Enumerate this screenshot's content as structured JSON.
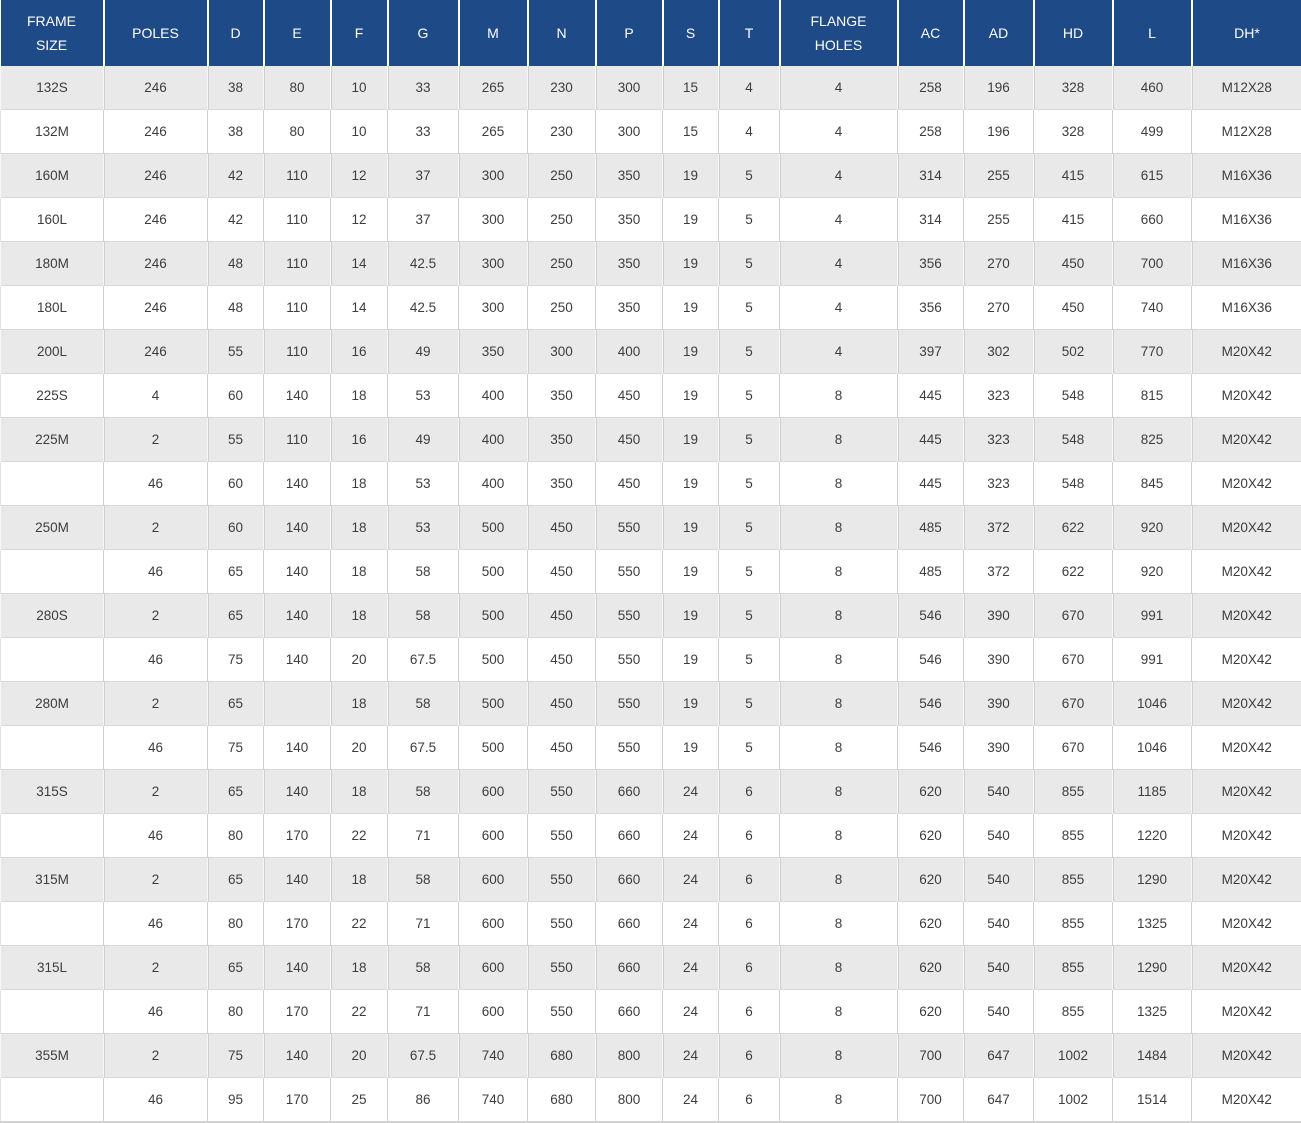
{
  "colors": {
    "header_bg": "#1e4a87",
    "header_text": "#ffffff",
    "row_stripe": "#e9e9e9",
    "row_plain": "#ffffff",
    "body_text": "#3d3d3d"
  },
  "table": {
    "columns": [
      "FRAME\nSIZE",
      "POLES",
      "D",
      "E",
      "F",
      "G",
      "M",
      "N",
      "P",
      "S",
      "T",
      "FLANGE\nHOLES",
      "AC",
      "AD",
      "HD",
      "L",
      "DH*"
    ],
    "rows": [
      [
        "132S",
        "246",
        "38",
        "80",
        "10",
        "33",
        "265",
        "230",
        "300",
        "15",
        "4",
        "4",
        "258",
        "196",
        "328",
        "460",
        "M12X28"
      ],
      [
        "132M",
        "246",
        "38",
        "80",
        "10",
        "33",
        "265",
        "230",
        "300",
        "15",
        "4",
        "4",
        "258",
        "196",
        "328",
        "499",
        "M12X28"
      ],
      [
        "160M",
        "246",
        "42",
        "110",
        "12",
        "37",
        "300",
        "250",
        "350",
        "19",
        "5",
        "4",
        "314",
        "255",
        "415",
        "615",
        "M16X36"
      ],
      [
        "160L",
        "246",
        "42",
        "110",
        "12",
        "37",
        "300",
        "250",
        "350",
        "19",
        "5",
        "4",
        "314",
        "255",
        "415",
        "660",
        "M16X36"
      ],
      [
        "180M",
        "246",
        "48",
        "110",
        "14",
        "42.5",
        "300",
        "250",
        "350",
        "19",
        "5",
        "4",
        "356",
        "270",
        "450",
        "700",
        "M16X36"
      ],
      [
        "180L",
        "246",
        "48",
        "110",
        "14",
        "42.5",
        "300",
        "250",
        "350",
        "19",
        "5",
        "4",
        "356",
        "270",
        "450",
        "740",
        "M16X36"
      ],
      [
        "200L",
        "246",
        "55",
        "110",
        "16",
        "49",
        "350",
        "300",
        "400",
        "19",
        "5",
        "4",
        "397",
        "302",
        "502",
        "770",
        "M20X42"
      ],
      [
        "225S",
        "4",
        "60",
        "140",
        "18",
        "53",
        "400",
        "350",
        "450",
        "19",
        "5",
        "8",
        "445",
        "323",
        "548",
        "815",
        "M20X42"
      ],
      [
        "225M",
        "2",
        "55",
        "110",
        "16",
        "49",
        "400",
        "350",
        "450",
        "19",
        "5",
        "8",
        "445",
        "323",
        "548",
        "825",
        "M20X42"
      ],
      [
        "",
        "46",
        "60",
        "140",
        "18",
        "53",
        "400",
        "350",
        "450",
        "19",
        "5",
        "8",
        "445",
        "323",
        "548",
        "845",
        "M20X42"
      ],
      [
        "250M",
        "2",
        "60",
        "140",
        "18",
        "53",
        "500",
        "450",
        "550",
        "19",
        "5",
        "8",
        "485",
        "372",
        "622",
        "920",
        "M20X42"
      ],
      [
        "",
        "46",
        "65",
        "140",
        "18",
        "58",
        "500",
        "450",
        "550",
        "19",
        "5",
        "8",
        "485",
        "372",
        "622",
        "920",
        "M20X42"
      ],
      [
        "280S",
        "2",
        "65",
        "140",
        "18",
        "58",
        "500",
        "450",
        "550",
        "19",
        "5",
        "8",
        "546",
        "390",
        "670",
        "991",
        "M20X42"
      ],
      [
        "",
        "46",
        "75",
        "140",
        "20",
        "67.5",
        "500",
        "450",
        "550",
        "19",
        "5",
        "8",
        "546",
        "390",
        "670",
        "991",
        "M20X42"
      ],
      [
        "280M",
        "2",
        "65",
        "",
        "18",
        "58",
        "500",
        "450",
        "550",
        "19",
        "5",
        "8",
        "546",
        "390",
        "670",
        "1046",
        "M20X42"
      ],
      [
        "",
        "46",
        "75",
        "140",
        "20",
        "67.5",
        "500",
        "450",
        "550",
        "19",
        "5",
        "8",
        "546",
        "390",
        "670",
        "1046",
        "M20X42"
      ],
      [
        "315S",
        "2",
        "65",
        "140",
        "18",
        "58",
        "600",
        "550",
        "660",
        "24",
        "6",
        "8",
        "620",
        "540",
        "855",
        "1185",
        "M20X42"
      ],
      [
        "",
        "46",
        "80",
        "170",
        "22",
        "71",
        "600",
        "550",
        "660",
        "24",
        "6",
        "8",
        "620",
        "540",
        "855",
        "1220",
        "M20X42"
      ],
      [
        "315M",
        "2",
        "65",
        "140",
        "18",
        "58",
        "600",
        "550",
        "660",
        "24",
        "6",
        "8",
        "620",
        "540",
        "855",
        "1290",
        "M20X42"
      ],
      [
        "",
        "46",
        "80",
        "170",
        "22",
        "71",
        "600",
        "550",
        "660",
        "24",
        "6",
        "8",
        "620",
        "540",
        "855",
        "1325",
        "M20X42"
      ],
      [
        "315L",
        "2",
        "65",
        "140",
        "18",
        "58",
        "600",
        "550",
        "660",
        "24",
        "6",
        "8",
        "620",
        "540",
        "855",
        "1290",
        "M20X42"
      ],
      [
        "",
        "46",
        "80",
        "170",
        "22",
        "71",
        "600",
        "550",
        "660",
        "24",
        "6",
        "8",
        "620",
        "540",
        "855",
        "1325",
        "M20X42"
      ],
      [
        "355M",
        "2",
        "75",
        "140",
        "20",
        "67.5",
        "740",
        "680",
        "800",
        "24",
        "6",
        "8",
        "700",
        "647",
        "1002",
        "1484",
        "M20X42"
      ],
      [
        "",
        "46",
        "95",
        "170",
        "25",
        "86",
        "740",
        "680",
        "800",
        "24",
        "6",
        "8",
        "700",
        "647",
        "1002",
        "1514",
        "M20X42"
      ]
    ]
  }
}
